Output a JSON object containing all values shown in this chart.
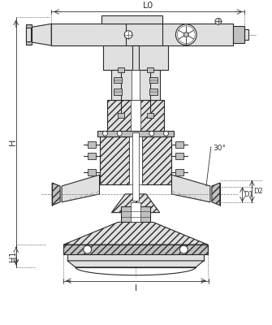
{
  "bg_color": "#ffffff",
  "lc": "#2a2a2a",
  "lc_dim": "#333333",
  "lw_main": 0.8,
  "lw_dim": 0.6,
  "lw_thin": 0.4,
  "gray_light": "#e0e0e0",
  "gray_mid": "#c0c0c0",
  "gray_dark": "#a0a0a0",
  "hatch_color": "#555555",
  "white": "#ffffff",
  "dims": {
    "L0_label": "L0",
    "H_label": "H",
    "H1_label": "H1",
    "L_label": "l",
    "angle_label": "30°",
    "D1_label": "D1",
    "D2_label": "D2"
  }
}
